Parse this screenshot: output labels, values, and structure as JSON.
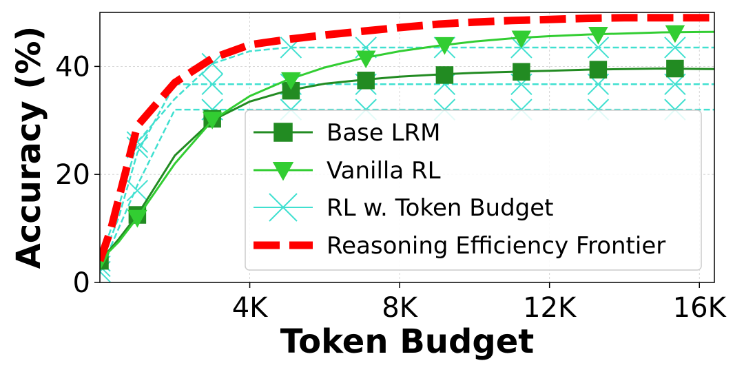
{
  "chart_data": {
    "type": "line",
    "xlabel": "Token Budget",
    "ylabel": "Accuracy (%)",
    "xlim": [
      0,
      16400
    ],
    "ylim": [
      0,
      50
    ],
    "xticks": [
      4000,
      8000,
      12000,
      16000
    ],
    "xtick_labels": [
      "4K",
      "8K",
      "12K",
      "16K"
    ],
    "yticks": [
      0,
      20,
      40
    ],
    "ytick_labels": [
      "0",
      "20",
      "40"
    ],
    "grid": true,
    "legend_position": "lower right",
    "series": [
      {
        "name": "Base LRM",
        "color": "#228B22",
        "marker": "square",
        "x": [
          0,
          500,
          1000,
          2000,
          3000,
          4000,
          5000,
          6000,
          7000,
          8000,
          9000,
          10000,
          11000,
          12000,
          13000,
          14000,
          15000,
          16400
        ],
        "y": [
          4,
          8,
          12.5,
          23.5,
          30,
          33.5,
          35.5,
          36.8,
          37.5,
          38.1,
          38.5,
          38.8,
          39.0,
          39.2,
          39.4,
          39.5,
          39.6,
          39.5
        ],
        "marker_x": [
          0,
          1000,
          3000,
          5100,
          7100,
          9200,
          11250,
          13300,
          15350
        ],
        "marker_y": [
          4,
          12.5,
          30.3,
          35.5,
          37.4,
          38.4,
          39.0,
          39.4,
          39.6
        ]
      },
      {
        "name": "Vanilla RL",
        "color": "#32CD32",
        "marker": "triangle-down",
        "x": [
          0,
          500,
          1000,
          2000,
          3000,
          4000,
          5000,
          6000,
          7000,
          8000,
          9000,
          10000,
          11000,
          12000,
          13000,
          14000,
          15000,
          16400
        ],
        "y": [
          4,
          7.5,
          12,
          22,
          30,
          34.5,
          37.5,
          39.8,
          41.5,
          42.8,
          43.8,
          44.6,
          45.2,
          45.6,
          45.9,
          46.1,
          46.3,
          46.4
        ],
        "marker_x": [
          0,
          1000,
          3000,
          5100,
          7100,
          9200,
          11250,
          13300,
          15350
        ],
        "marker_y": [
          4,
          12,
          30.2,
          37.5,
          41.5,
          44,
          45.2,
          45.9,
          46.2
        ]
      },
      {
        "name": "RL w. Token Budget",
        "color": "#40E0D0",
        "marker": "x",
        "lines": [
          {
            "x": [
              0,
              500,
              1000,
              2000,
              3000,
              4000,
              5000,
              16400
            ],
            "y": [
              2,
              10,
              18,
              32,
              32,
              32,
              32,
              32
            ]
          },
          {
            "x": [
              0,
              500,
              1000,
              2000,
              3000,
              4000,
              5000,
              16400
            ],
            "y": [
              3,
              12,
              24,
              36.7,
              36.7,
              36.7,
              36.7,
              36.7
            ]
          },
          {
            "x": [
              0,
              500,
              1000,
              2000,
              3000,
              4000,
              5000,
              16400
            ],
            "y": [
              4,
              14,
              26,
              34,
              40.5,
              42.8,
              43.5,
              43.5
            ]
          }
        ],
        "marker_x": [
          0,
          1000,
          3000,
          5100,
          7100,
          9200,
          11250,
          13300,
          15350
        ],
        "marker_sets": [
          [
            2,
            17,
            32,
            32,
            32,
            32,
            32,
            32,
            32
          ],
          [
            3,
            25,
            36.7,
            36.7,
            36.7,
            36.7,
            36.7,
            36.7,
            36.7
          ],
          [
            4,
            26,
            40.5,
            43.5,
            43.5,
            43.5,
            43.5,
            43.5,
            43.5
          ]
        ]
      },
      {
        "name": "Reasoning Efficiency Frontier",
        "color": "#FF0000",
        "style": "dashed",
        "x": [
          0,
          300,
          1000,
          2000,
          3000,
          4000,
          5000,
          6000,
          7000,
          8000,
          9000,
          10000,
          11000,
          12000,
          13000,
          14000,
          15000,
          16400
        ],
        "y": [
          4,
          10,
          29,
          37,
          41.5,
          44,
          45,
          45.8,
          46.5,
          47.2,
          47.8,
          48.2,
          48.5,
          48.7,
          48.9,
          49.0,
          49.0,
          49.0
        ]
      }
    ]
  }
}
